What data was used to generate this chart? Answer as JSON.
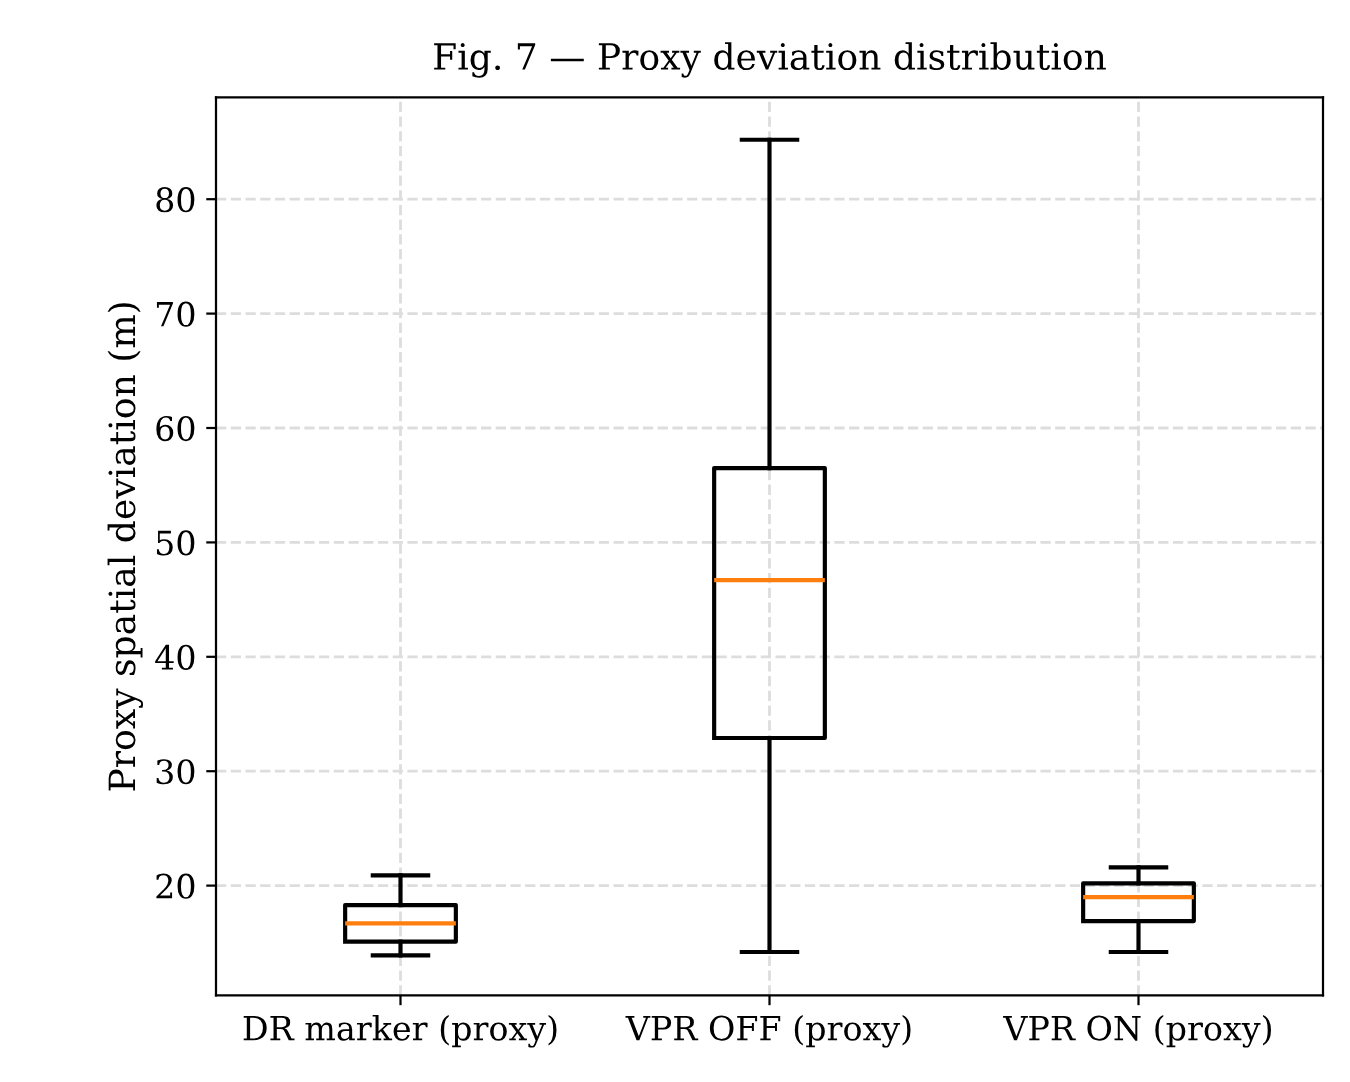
{
  "chart_data": {
    "type": "box",
    "title": "Fig. 7 — Proxy deviation distribution",
    "ylabel": "Proxy spatial deviation (m)",
    "categories": [
      "DR marker (proxy)",
      "VPR OFF (proxy)",
      "VPR ON (proxy)"
    ],
    "boxes": [
      {
        "low": 13.9,
        "q1": 15.1,
        "median": 16.7,
        "q3": 18.3,
        "high": 20.9
      },
      {
        "low": 14.2,
        "q1": 32.9,
        "median": 46.7,
        "q3": 56.5,
        "high": 85.2
      },
      {
        "low": 14.2,
        "q1": 16.9,
        "median": 19.0,
        "q3": 20.2,
        "high": 21.6
      }
    ],
    "ylim": [
      10.4,
      88.9
    ],
    "yticks": [
      20,
      30,
      40,
      50,
      60,
      70,
      80
    ],
    "grid": true
  }
}
